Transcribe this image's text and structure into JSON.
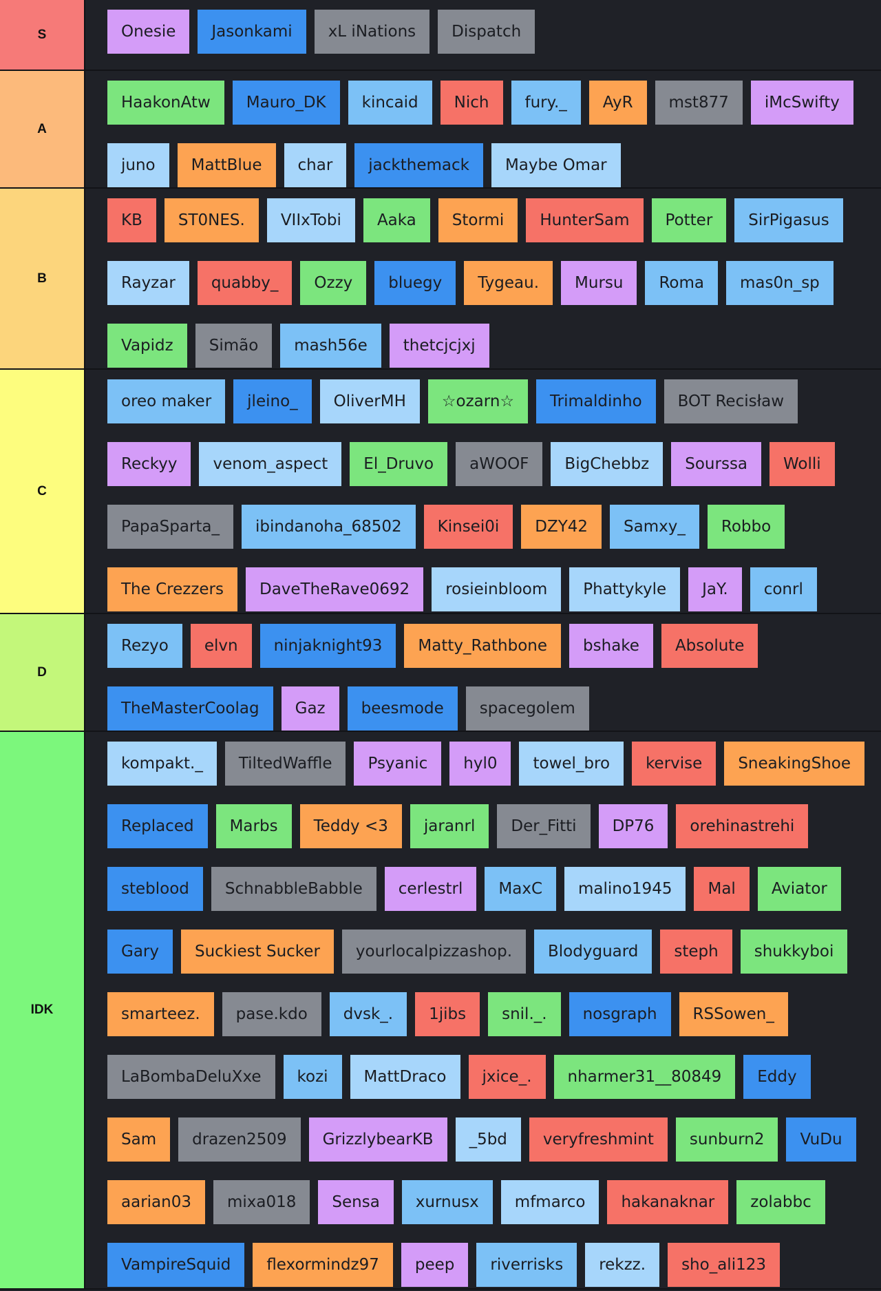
{
  "colors": {
    "purple": "#d49cf8",
    "blue": "#3c91f0",
    "lightblue": "#7cc1f6",
    "paleblue": "#a7d6fb",
    "gray": "#868a92",
    "green": "#7ce57e",
    "red": "#f67267",
    "orange": "#fda352"
  },
  "tiers": [
    {
      "label": "S",
      "color": "#f67a78",
      "items": [
        {
          "name": "Onesie",
          "color": "purple"
        },
        {
          "name": "Jasonkami",
          "color": "blue"
        },
        {
          "name": "xL iNations",
          "color": "gray"
        },
        {
          "name": "Dispatch",
          "color": "gray"
        }
      ]
    },
    {
      "label": "A",
      "color": "#fcba7b",
      "items": [
        {
          "name": "HaakonAtw",
          "color": "green"
        },
        {
          "name": "Mauro_DK",
          "color": "blue"
        },
        {
          "name": "kincaid",
          "color": "lightblue"
        },
        {
          "name": "Nich",
          "color": "red"
        },
        {
          "name": "fury._",
          "color": "lightblue"
        },
        {
          "name": "AyR",
          "color": "orange"
        },
        {
          "name": "mst877",
          "color": "gray"
        },
        {
          "name": "iMcSwifty",
          "color": "purple"
        },
        {
          "name": "juno",
          "color": "paleblue"
        },
        {
          "name": "MattBlue",
          "color": "orange"
        },
        {
          "name": "char",
          "color": "paleblue"
        },
        {
          "name": "jackthemack",
          "color": "blue"
        },
        {
          "name": "Maybe Omar",
          "color": "paleblue"
        }
      ]
    },
    {
      "label": "B",
      "color": "#fcd57c",
      "items": [
        {
          "name": "KB",
          "color": "red"
        },
        {
          "name": "ST0NES.",
          "color": "orange"
        },
        {
          "name": "VIIxTobi",
          "color": "paleblue"
        },
        {
          "name": "Aaka",
          "color": "green"
        },
        {
          "name": "Stormi",
          "color": "orange"
        },
        {
          "name": "HunterSam",
          "color": "red"
        },
        {
          "name": "Potter",
          "color": "green"
        },
        {
          "name": "SirPigasus",
          "color": "lightblue"
        },
        {
          "name": "Rayzar",
          "color": "paleblue"
        },
        {
          "name": "quabby_",
          "color": "red"
        },
        {
          "name": "Ozzy",
          "color": "green"
        },
        {
          "name": "bluegy",
          "color": "blue"
        },
        {
          "name": "Tygeau.",
          "color": "orange"
        },
        {
          "name": "Mursu",
          "color": "purple"
        },
        {
          "name": "Roma",
          "color": "lightblue"
        },
        {
          "name": "mas0n_sp",
          "color": "lightblue"
        },
        {
          "name": "Vapidz",
          "color": "green"
        },
        {
          "name": "Simão",
          "color": "gray"
        },
        {
          "name": "mash56e",
          "color": "lightblue"
        },
        {
          "name": "thetcjcjxj",
          "color": "purple"
        }
      ]
    },
    {
      "label": "C",
      "color": "#fdfd7e",
      "items": [
        {
          "name": "oreo maker",
          "color": "lightblue"
        },
        {
          "name": "jleino_",
          "color": "blue"
        },
        {
          "name": "OliverMH",
          "color": "paleblue"
        },
        {
          "name": "☆ozarn☆",
          "color": "green"
        },
        {
          "name": "Trimaldinho",
          "color": "blue"
        },
        {
          "name": "BOT Recisław",
          "color": "gray"
        },
        {
          "name": "Reckyy",
          "color": "purple"
        },
        {
          "name": "venom_aspect",
          "color": "paleblue"
        },
        {
          "name": "El_Druvo",
          "color": "green"
        },
        {
          "name": "aWOOF",
          "color": "gray"
        },
        {
          "name": "BigChebbz",
          "color": "paleblue"
        },
        {
          "name": "Sourssa",
          "color": "purple"
        },
        {
          "name": "Wolli",
          "color": "red"
        },
        {
          "name": "PapaSparta_",
          "color": "gray"
        },
        {
          "name": "ibindanoha_68502",
          "color": "lightblue"
        },
        {
          "name": "Kinsei0i",
          "color": "red"
        },
        {
          "name": "DZY42",
          "color": "orange"
        },
        {
          "name": "Samxy_",
          "color": "lightblue"
        },
        {
          "name": "Robbo",
          "color": "green"
        },
        {
          "name": "The Crezzers",
          "color": "orange"
        },
        {
          "name": "DaveTheRave0692",
          "color": "purple"
        },
        {
          "name": "rosieinbloom",
          "color": "paleblue"
        },
        {
          "name": "Phattykyle",
          "color": "paleblue"
        },
        {
          "name": "JaY.",
          "color": "purple"
        },
        {
          "name": "conrl",
          "color": "lightblue"
        }
      ]
    },
    {
      "label": "D",
      "color": "#c3f77a",
      "items": [
        {
          "name": "Rezyo",
          "color": "lightblue"
        },
        {
          "name": "elvn",
          "color": "red"
        },
        {
          "name": "ninjaknight93",
          "color": "blue"
        },
        {
          "name": "Matty_Rathbone",
          "color": "orange"
        },
        {
          "name": "bshake",
          "color": "purple"
        },
        {
          "name": "Absolute",
          "color": "red"
        },
        {
          "name": "TheMasterCoolag",
          "color": "blue"
        },
        {
          "name": "Gaz",
          "color": "purple"
        },
        {
          "name": "beesmode",
          "color": "blue"
        },
        {
          "name": "spacegolem",
          "color": "gray"
        }
      ]
    },
    {
      "label": "IDK",
      "color": "#7cf77c",
      "items": [
        {
          "name": "kompakt._",
          "color": "paleblue"
        },
        {
          "name": "TiltedWaffle",
          "color": "gray"
        },
        {
          "name": "Psyanic",
          "color": "purple"
        },
        {
          "name": "hyl0",
          "color": "purple"
        },
        {
          "name": "towel_bro",
          "color": "paleblue"
        },
        {
          "name": "kervise",
          "color": "red"
        },
        {
          "name": "SneakingShoe",
          "color": "orange"
        },
        {
          "name": "Replaced",
          "color": "blue"
        },
        {
          "name": "Marbs",
          "color": "green"
        },
        {
          "name": "Teddy <3",
          "color": "orange"
        },
        {
          "name": "jaranrl",
          "color": "green"
        },
        {
          "name": "Der_Fitti",
          "color": "gray"
        },
        {
          "name": "DP76",
          "color": "purple"
        },
        {
          "name": "orehinastrehi",
          "color": "red"
        },
        {
          "name": "steblood",
          "color": "blue"
        },
        {
          "name": "SchnabbleBabble",
          "color": "gray"
        },
        {
          "name": "cerlestrl",
          "color": "purple"
        },
        {
          "name": "MaxC",
          "color": "lightblue"
        },
        {
          "name": "malino1945",
          "color": "paleblue"
        },
        {
          "name": "Mal",
          "color": "red"
        },
        {
          "name": "Aviator",
          "color": "green"
        },
        {
          "name": "Gary",
          "color": "blue"
        },
        {
          "name": "Suckiest Sucker",
          "color": "orange"
        },
        {
          "name": "yourlocalpizzashop.",
          "color": "gray"
        },
        {
          "name": "Blodyguard",
          "color": "lightblue"
        },
        {
          "name": "steph",
          "color": "red"
        },
        {
          "name": "shukkyboi",
          "color": "green"
        },
        {
          "name": "smarteez.",
          "color": "orange"
        },
        {
          "name": "pase.kdo",
          "color": "gray"
        },
        {
          "name": "dvsk_.",
          "color": "lightblue"
        },
        {
          "name": "1jibs",
          "color": "red"
        },
        {
          "name": "snil._.",
          "color": "green"
        },
        {
          "name": "nosgraph",
          "color": "blue"
        },
        {
          "name": "RSSowen_",
          "color": "orange"
        },
        {
          "name": "LaBombaDeluXxe",
          "color": "gray"
        },
        {
          "name": "kozi",
          "color": "lightblue"
        },
        {
          "name": "MattDraco",
          "color": "paleblue"
        },
        {
          "name": "jxice_.",
          "color": "red"
        },
        {
          "name": "nharmer31__80849",
          "color": "green"
        },
        {
          "name": "Eddy",
          "color": "blue"
        },
        {
          "name": "Sam",
          "color": "orange"
        },
        {
          "name": "drazen2509",
          "color": "gray"
        },
        {
          "name": "GrizzlybearKB",
          "color": "purple"
        },
        {
          "name": "_5bd",
          "color": "paleblue"
        },
        {
          "name": "veryfreshmint",
          "color": "red"
        },
        {
          "name": "sunburn2",
          "color": "green"
        },
        {
          "name": "VuDu",
          "color": "blue"
        },
        {
          "name": "aarian03",
          "color": "orange"
        },
        {
          "name": "mixa018",
          "color": "gray"
        },
        {
          "name": "Sensa",
          "color": "purple"
        },
        {
          "name": "xurnusx",
          "color": "lightblue"
        },
        {
          "name": "mfmarco",
          "color": "paleblue"
        },
        {
          "name": "hakanaknar",
          "color": "red"
        },
        {
          "name": "zolabbc",
          "color": "green"
        },
        {
          "name": "VampireSquid",
          "color": "blue"
        },
        {
          "name": "flexormindz97",
          "color": "orange"
        },
        {
          "name": "peep",
          "color": "purple"
        },
        {
          "name": "riverrisks",
          "color": "lightblue"
        },
        {
          "name": "rekzz.",
          "color": "paleblue"
        },
        {
          "name": "sho_ali123",
          "color": "red"
        }
      ]
    }
  ]
}
